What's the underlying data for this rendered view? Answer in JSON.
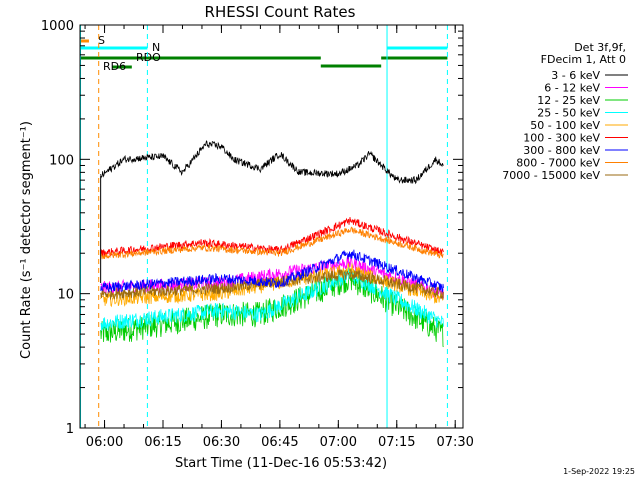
{
  "chart_data": {
    "type": "line",
    "title": "RHESSI Count Rates",
    "xlabel": "Start Time (11-Dec-16 05:53:42)",
    "ylabel": "Count Rate (s⁻¹ detector segment⁻¹)",
    "yscale": "log",
    "ylim": [
      1,
      1000
    ],
    "y_ticks": [
      "1",
      "10",
      "100",
      "1000"
    ],
    "xlim": [
      "05:53",
      "07:32"
    ],
    "x_ticks": [
      "06:00",
      "06:15",
      "06:30",
      "06:45",
      "07:00",
      "07:15",
      "07:30"
    ],
    "grid": false,
    "legend_position": "right",
    "legend_header": [
      "Det 3f,9f,",
      "FDecim 1, Att 0"
    ],
    "series": [
      {
        "name": "3 - 6 keV",
        "color": "#000000",
        "values_approx": {
          "t": [
            "05:59",
            "06:05",
            "06:15",
            "06:20",
            "06:26",
            "06:30",
            "06:33",
            "06:40",
            "06:45",
            "06:50",
            "07:00",
            "07:05",
            "07:08",
            "07:15",
            "07:20",
            "07:25",
            "07:27"
          ],
          "y": [
            75,
            100,
            105,
            80,
            130,
            125,
            100,
            85,
            110,
            80,
            78,
            90,
            110,
            70,
            70,
            100,
            90
          ]
        }
      },
      {
        "name": "6 - 12 keV",
        "color": "#ff00ff",
        "values_approx": {
          "t": [
            "05:59",
            "06:30",
            "07:03",
            "07:27"
          ],
          "y": [
            11,
            12,
            17,
            10
          ]
        }
      },
      {
        "name": "12 - 25 keV",
        "color": "#00cc00",
        "values_approx": {
          "t": [
            "05:59",
            "06:30",
            "06:40",
            "07:03",
            "07:27"
          ],
          "y": [
            5,
            7,
            7,
            13,
            5
          ]
        }
      },
      {
        "name": "25 - 50 keV",
        "color": "#00ffff",
        "values_approx": {
          "t": [
            "05:59",
            "06:30",
            "06:40",
            "07:03",
            "07:27"
          ],
          "y": [
            6,
            7.5,
            7,
            14,
            6
          ]
        }
      },
      {
        "name": "50 - 100 keV",
        "color": "#ffaa00",
        "values_approx": {
          "t": [
            "05:59",
            "06:30",
            "07:03",
            "07:27"
          ],
          "y": [
            9,
            10,
            15,
            9
          ]
        }
      },
      {
        "name": "100 - 300 keV",
        "color": "#ff0000",
        "values_approx": {
          "t": [
            "05:59",
            "06:25",
            "06:45",
            "07:03",
            "07:27"
          ],
          "y": [
            20,
            24,
            21,
            35,
            20
          ]
        }
      },
      {
        "name": "300 - 800 keV",
        "color": "#0000ff",
        "values_approx": {
          "t": [
            "05:59",
            "06:30",
            "06:45",
            "07:03",
            "07:27"
          ],
          "y": [
            11,
            13,
            12,
            20,
            11
          ]
        }
      },
      {
        "name": "800 - 7000 keV",
        "color": "#ff8000",
        "values_approx": {
          "t": [
            "05:59",
            "06:25",
            "06:45",
            "07:03",
            "07:27"
          ],
          "y": [
            19,
            22,
            20,
            30,
            19
          ]
        }
      },
      {
        "name": "7000 - 15000 keV",
        "color": "#9a6a10",
        "values_approx": {
          "t": [
            "05:59",
            "06:30",
            "07:03",
            "07:27"
          ],
          "y": [
            10,
            11,
            14,
            10
          ]
        }
      }
    ],
    "flag_bars": [
      {
        "label": "S",
        "color": "#ff8c00"
      },
      {
        "label": "N",
        "color": "#00ffff"
      },
      {
        "label": "RDO",
        "color": "#008000"
      },
      {
        "label": "RD6",
        "color": "#008000"
      }
    ],
    "vertical_lines": [
      {
        "t": "05:53:50",
        "color": "#00ffff",
        "style": "solid"
      },
      {
        "t": "05:58:30",
        "color": "#ff8c00",
        "style": "dashed"
      },
      {
        "t": "06:11:00",
        "color": "#00ffff",
        "style": "dashed"
      },
      {
        "t": "07:12:30",
        "color": "#00ffff",
        "style": "solid"
      },
      {
        "t": "07:28:00",
        "color": "#00ffff",
        "style": "dashed"
      }
    ],
    "footer_date": "1-Sep-2022 19:25"
  }
}
